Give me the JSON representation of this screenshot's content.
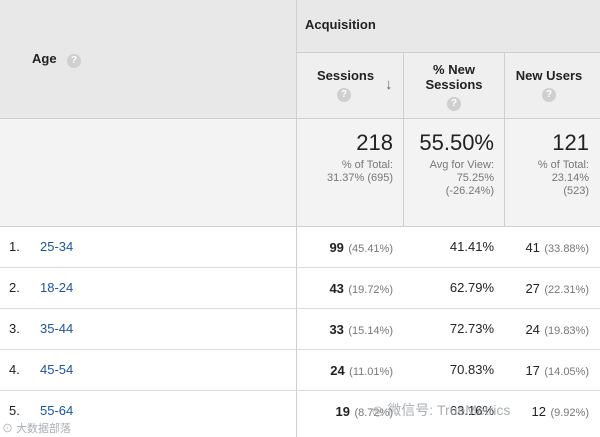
{
  "header": {
    "age_label": "Age",
    "group_label": "Acquisition",
    "columns": [
      {
        "label_line1": "Sessions",
        "label_line2": "",
        "sorted": true
      },
      {
        "label_line1": "% New",
        "label_line2": "Sessions"
      },
      {
        "label_line1": "New Users",
        "label_line2": ""
      }
    ],
    "help_glyph": "?",
    "sort_glyph": "↓"
  },
  "summary": {
    "sessions": {
      "value": "218",
      "line1": "% of Total:",
      "line2": "31.37% (695)"
    },
    "new_sessions": {
      "value": "55.50%",
      "line1": "Avg for View:",
      "line2": "75.25%",
      "line3": "(-26.24%)"
    },
    "new_users": {
      "value": "121",
      "line1": "% of Total:",
      "line2": "23.14%",
      "line3": "(523)"
    }
  },
  "rows": [
    {
      "index": "1.",
      "age": "25-34",
      "sessions": "99",
      "sessions_pct": "(45.41%)",
      "new_sessions": "41.41%",
      "new_users": "41",
      "new_users_pct": "(33.88%)"
    },
    {
      "index": "2.",
      "age": "18-24",
      "sessions": "43",
      "sessions_pct": "(19.72%)",
      "new_sessions": "62.79%",
      "new_users": "27",
      "new_users_pct": "(22.31%)"
    },
    {
      "index": "3.",
      "age": "35-44",
      "sessions": "33",
      "sessions_pct": "(15.14%)",
      "new_sessions": "72.73%",
      "new_users": "24",
      "new_users_pct": "(19.83%)"
    },
    {
      "index": "4.",
      "age": "45-54",
      "sessions": "24",
      "sessions_pct": "(11.01%)",
      "new_sessions": "70.83%",
      "new_users": "17",
      "new_users_pct": "(14.05%)"
    },
    {
      "index": "5.",
      "age": "55-64",
      "sessions": "19",
      "sessions_pct": "(8.72%)",
      "new_sessions": "63.16%",
      "new_users": "12",
      "new_users_pct": "(9.92%)"
    }
  ],
  "watermarks": {
    "right": "微信号: TrueMetrics",
    "left": "大数据部落"
  }
}
